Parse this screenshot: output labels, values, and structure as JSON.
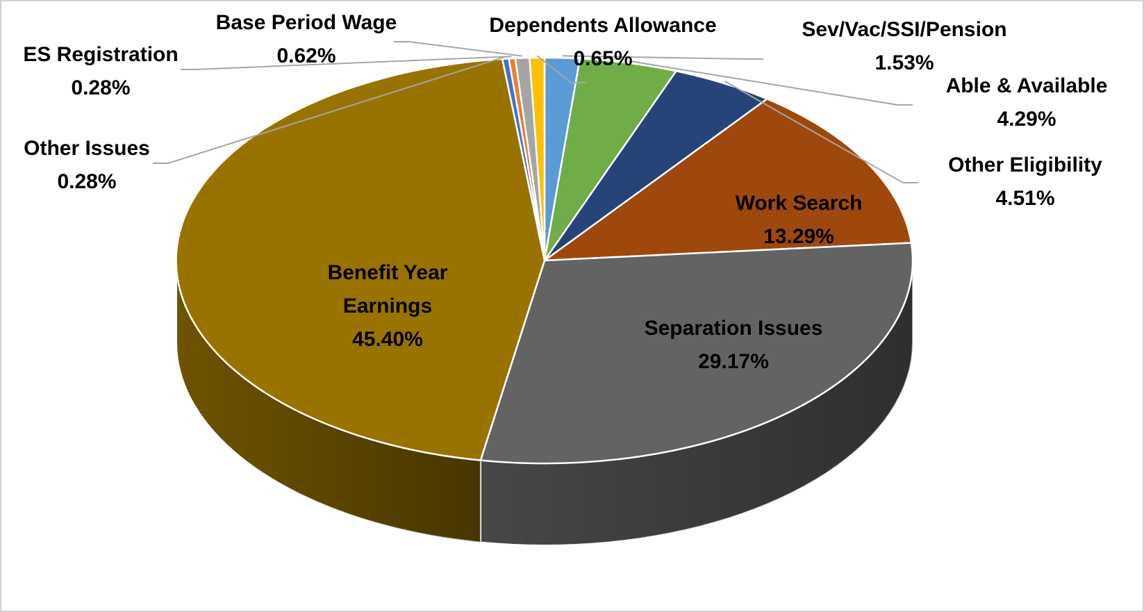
{
  "chart_data": {
    "type": "pie",
    "style": "3d",
    "title": "",
    "slices": [
      {
        "name": "Sev/Vac/SSI/Pension",
        "value": 1.53,
        "label": "1.53%",
        "color": "#5b9bd5"
      },
      {
        "name": "Able & Available",
        "value": 4.29,
        "label": "4.29%",
        "color": "#70ad47"
      },
      {
        "name": "Other Eligibility",
        "value": 4.51,
        "label": "4.51%",
        "color": "#264478"
      },
      {
        "name": "Work Search",
        "value": 13.29,
        "label": "13.29%",
        "color": "#9e480e"
      },
      {
        "name": "Separation Issues",
        "value": 29.17,
        "label": "29.17%",
        "color": "#636363"
      },
      {
        "name": "Benefit Year Earnings",
        "value": 45.4,
        "label": "45.40%",
        "color": "#997300"
      },
      {
        "name": "Other Issues",
        "value": 0.28,
        "label": "0.28%",
        "color": "#4472c4"
      },
      {
        "name": "ES Registration",
        "value": 0.28,
        "label": "0.28%",
        "color": "#ed7d31"
      },
      {
        "name": "Base Period Wage",
        "value": 0.62,
        "label": "0.62%",
        "color": "#a5a5a5"
      },
      {
        "name": "Dependents Allowance",
        "value": 0.65,
        "label": "0.65%",
        "color": "#ffc000"
      }
    ],
    "start_angle_deg": 90,
    "direction": "clockwise",
    "legend": "none",
    "data_labels": "category name and percentage"
  }
}
